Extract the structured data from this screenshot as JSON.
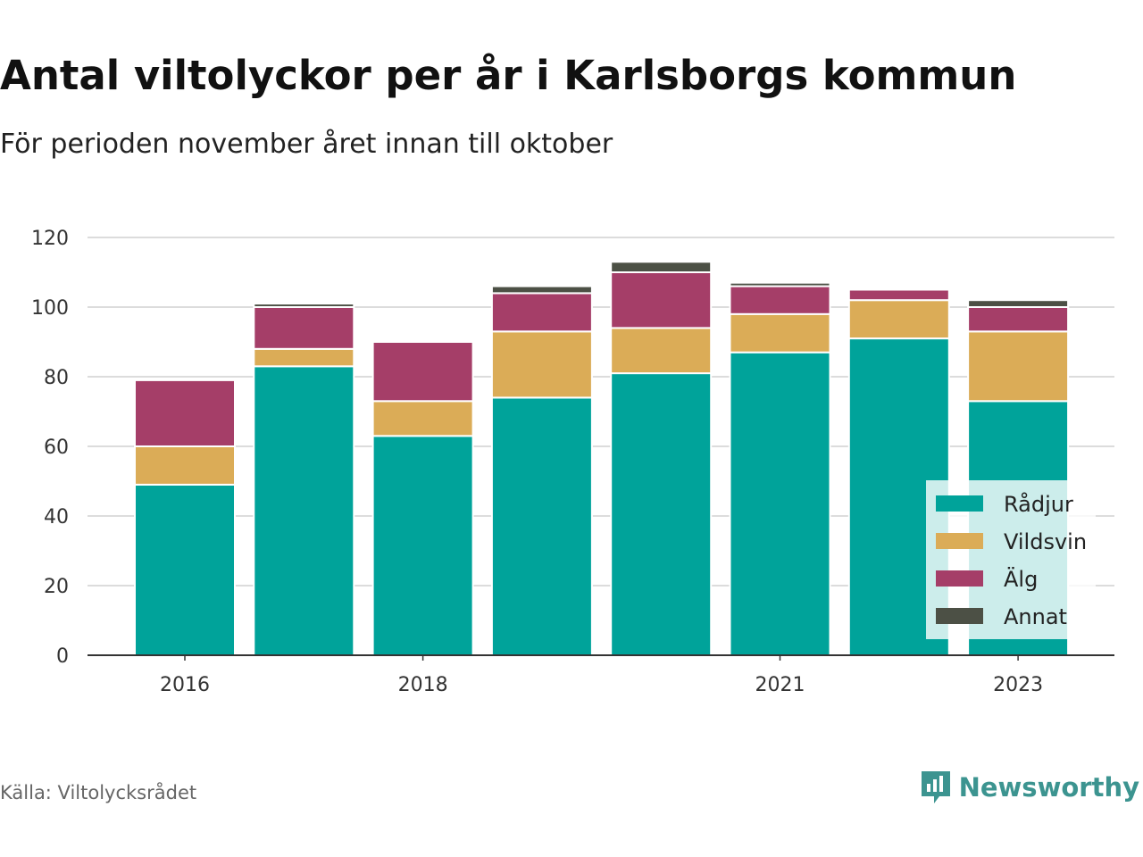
{
  "title": "Antal viltolyckor per år i Karlsborgs kommun",
  "subtitle": "För perioden november året innan till oktober",
  "source": "Källa: Viltolycksrådet",
  "brand": "Newsworthy",
  "colors": {
    "Rådjur": "#00a39a",
    "Vildsvin": "#dbac57",
    "Älg": "#a53e68",
    "Annat": "#4c5045",
    "grid": "#dcdcdc",
    "axis": "#333333",
    "brand": "#3c9490"
  },
  "chart_data": {
    "type": "bar",
    "stacked": true,
    "categories": [
      "2016",
      "2017",
      "2018",
      "2019",
      "2020",
      "2021",
      "2022",
      "2023"
    ],
    "x_tick_labels": [
      "2016",
      "2018",
      "2021",
      "2023"
    ],
    "series": [
      {
        "name": "Rådjur",
        "values": [
          49,
          83,
          63,
          74,
          81,
          87,
          91,
          73
        ]
      },
      {
        "name": "Vildsvin",
        "values": [
          11,
          5,
          10,
          19,
          13,
          11,
          11,
          20
        ]
      },
      {
        "name": "Älg",
        "values": [
          19,
          12,
          17,
          11,
          16,
          8,
          3,
          7
        ]
      },
      {
        "name": "Annat",
        "values": [
          0,
          1,
          0,
          2,
          3,
          1,
          0,
          2
        ]
      }
    ],
    "ylim": [
      0,
      120
    ],
    "y_ticks": [
      0,
      20,
      40,
      60,
      80,
      100,
      120
    ],
    "grid": true,
    "legend_position": "bottom-right"
  }
}
